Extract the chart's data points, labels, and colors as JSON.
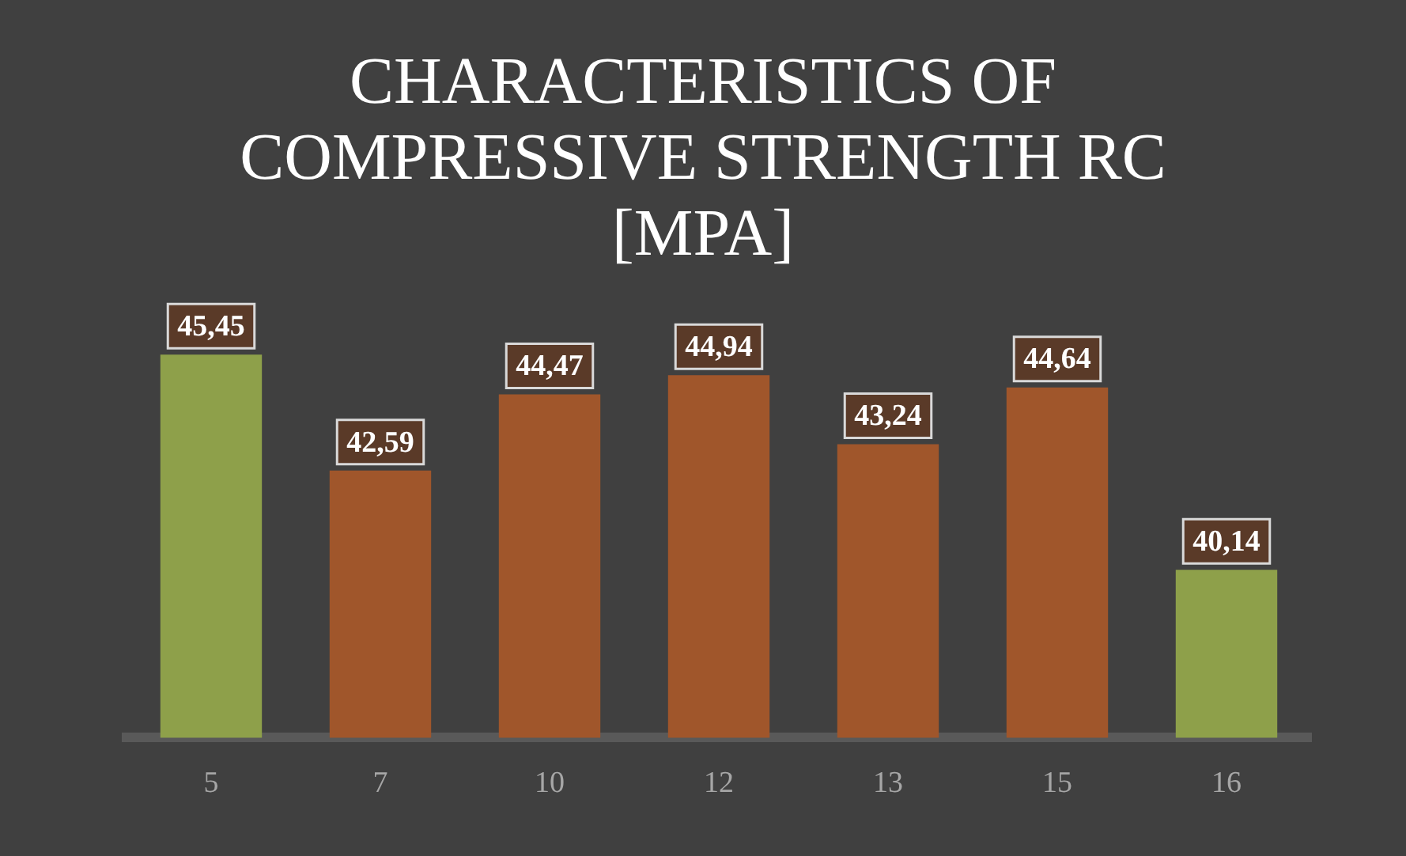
{
  "chart_data": {
    "type": "bar",
    "title": "CHARACTERISTICS OF COMPRESSIVE STRENGTH RC [MPA]",
    "categories": [
      "5",
      "7",
      "10",
      "12",
      "13",
      "15",
      "16"
    ],
    "values": [
      45.45,
      42.59,
      44.47,
      44.94,
      43.24,
      44.64,
      40.14
    ],
    "value_labels": [
      "45,45",
      "42,59",
      "44,47",
      "44,94",
      "43,24",
      "44,64",
      "40,14"
    ],
    "colors": [
      "#8ea04a",
      "#a0562b",
      "#a0562b",
      "#a0562b",
      "#a0562b",
      "#a0562b",
      "#8ea04a"
    ],
    "ylim": [
      36,
      46
    ],
    "tick_labels": "x",
    "grid": false,
    "legend": false
  }
}
